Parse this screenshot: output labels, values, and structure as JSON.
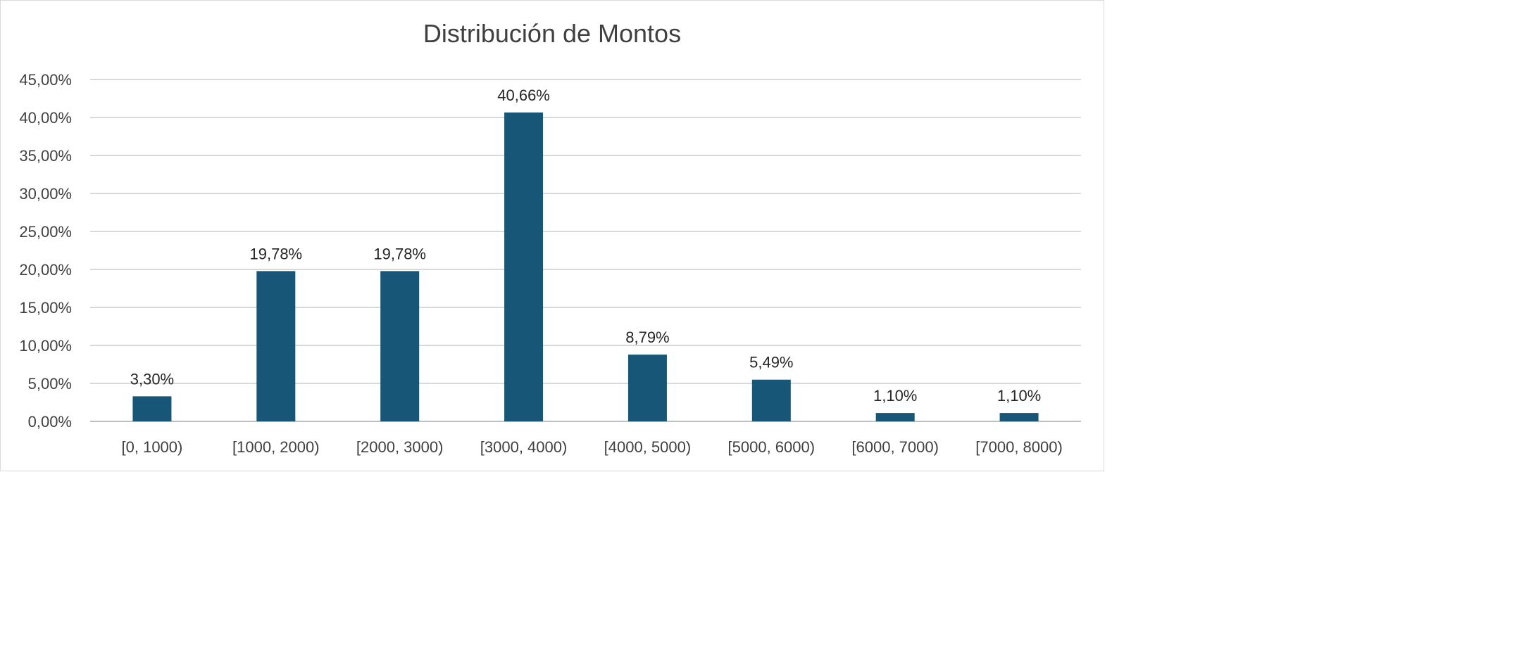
{
  "chart_data": {
    "type": "bar",
    "title": "Distribución de Montos",
    "xlabel": "",
    "ylabel": "",
    "categories": [
      "[0, 1000)",
      "[1000, 2000)",
      "[2000, 3000)",
      "[3000, 4000)",
      "[4000, 5000)",
      "[5000, 6000)",
      "[6000, 7000)",
      "[7000, 8000)"
    ],
    "values": [
      3.3,
      19.78,
      19.78,
      40.66,
      8.79,
      5.49,
      1.1,
      1.1
    ],
    "data_labels": [
      "3,30%",
      "19,78%",
      "19,78%",
      "40,66%",
      "8,79%",
      "5,49%",
      "1,10%",
      "1,10%"
    ],
    "ylim": [
      0,
      45
    ],
    "yticks": [
      0,
      5,
      10,
      15,
      20,
      25,
      30,
      35,
      40,
      45
    ],
    "ytick_labels": [
      "0,00%",
      "5,00%",
      "10,00%",
      "15,00%",
      "20,00%",
      "25,00%",
      "30,00%",
      "35,00%",
      "40,00%",
      "45,00%"
    ],
    "grid": true,
    "legend": "none",
    "colors": {
      "bar": "#175676",
      "grid": "#d9d9d9",
      "axis": "#bfbfbf",
      "text": "#404040"
    }
  }
}
